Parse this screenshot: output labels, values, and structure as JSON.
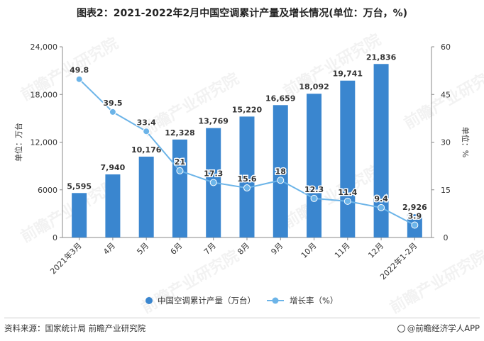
{
  "title": "图表2：2021-2022年2月中国空调累计产量及增长情况(单位：万台，%)",
  "chart_data": {
    "type": "bar",
    "categories": [
      "2021年3月",
      "4月",
      "5月",
      "6月",
      "7月",
      "8月",
      "9月",
      "10月",
      "11月",
      "12月",
      "2022年1-2月"
    ],
    "series": [
      {
        "name": "中国空调累计产量（万台）",
        "type": "bar",
        "axis": "left",
        "values": [
          5595,
          7940,
          10176,
          12328,
          13769,
          15220,
          16659,
          18092,
          19741,
          21836,
          2926
        ],
        "labels": [
          "5,595",
          "7,940",
          "10,176",
          "12,328",
          "13,769",
          "15,220",
          "16,659",
          "18,092",
          "19,741",
          "21,836",
          "2,926"
        ]
      },
      {
        "name": "增长率（%）",
        "type": "line",
        "axis": "right",
        "values": [
          49.8,
          39.5,
          33.4,
          21,
          17.3,
          15.6,
          18,
          12.3,
          11.4,
          9.4,
          3.9
        ],
        "labels": [
          "49.8",
          "39.5",
          "33.4",
          "21",
          "17.3",
          "15.6",
          "18",
          "12.3",
          "11.4",
          "9.4",
          "3.9"
        ]
      }
    ],
    "y_left": {
      "label": "单位：万台",
      "ylim": [
        0,
        24000
      ],
      "ticks": [
        "0",
        "6000",
        "12,000",
        "18,000",
        "24,000"
      ]
    },
    "y_right": {
      "label": "单位：%",
      "ylim": [
        0,
        60
      ],
      "ticks": [
        "0",
        "15",
        "30",
        "45",
        "60"
      ]
    },
    "legend_position": "bottom",
    "grid": false
  },
  "colors": {
    "bar": "#3a86cf",
    "line": "#6cb4e8",
    "axis": "#888888",
    "text": "#333333"
  },
  "watermark": "前瞻产业研究院",
  "footer": {
    "source": "资料来源：国家统计局 前瞻产业研究院",
    "brand": "@前瞻经济学人APP"
  }
}
